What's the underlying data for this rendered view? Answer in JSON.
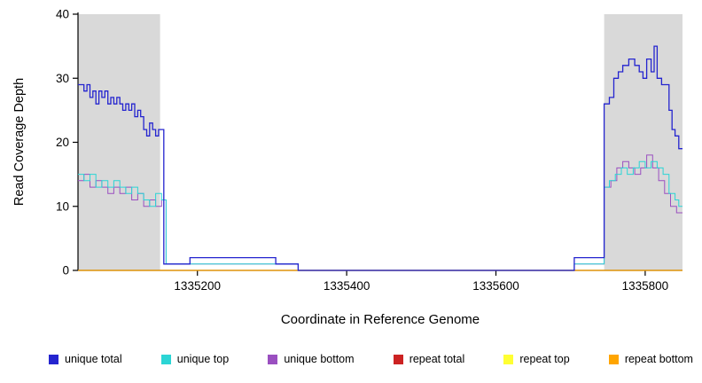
{
  "chart_data": {
    "type": "line",
    "style": "step-after-coverage-plot",
    "title": "",
    "xlabel": "Coordinate in Reference Genome",
    "ylabel": "Read Coverage Depth",
    "xlim": [
      1335040,
      1335850
    ],
    "ylim": [
      0,
      40
    ],
    "x_ticks": [
      1335200,
      1335400,
      1335600,
      1335800
    ],
    "y_ticks": [
      0,
      10,
      20,
      30,
      40
    ],
    "grid": false,
    "shade_color": "#d9d9d9",
    "shaded_regions": [
      [
        1335040,
        1335150
      ],
      [
        1335745,
        1335850
      ]
    ],
    "series": [
      {
        "id": "repeat-total",
        "name": "repeat total",
        "color": "#cc2222",
        "width": 1,
        "points": [
          [
            1335040,
            0
          ]
        ]
      },
      {
        "id": "repeat-top",
        "name": "repeat top",
        "color": "#ffff33",
        "width": 1,
        "points": [
          [
            1335040,
            0
          ]
        ]
      },
      {
        "id": "repeat-bottom",
        "name": "repeat bottom",
        "color": "#ffa500",
        "width": 1.2,
        "points": [
          [
            1335040,
            0
          ]
        ]
      },
      {
        "id": "unique-bottom",
        "name": "unique bottom",
        "color": "#9a4fc0",
        "width": 1,
        "points": [
          [
            1335040,
            14
          ],
          [
            1335048,
            15
          ],
          [
            1335056,
            13
          ],
          [
            1335064,
            14
          ],
          [
            1335072,
            13
          ],
          [
            1335080,
            12
          ],
          [
            1335088,
            13
          ],
          [
            1335096,
            12
          ],
          [
            1335104,
            13
          ],
          [
            1335112,
            11
          ],
          [
            1335120,
            12
          ],
          [
            1335128,
            10
          ],
          [
            1335136,
            11
          ],
          [
            1335144,
            10
          ],
          [
            1335152,
            11
          ],
          [
            1335158,
            1
          ],
          [
            1335335,
            0
          ],
          [
            1335705,
            1
          ],
          [
            1335745,
            13
          ],
          [
            1335754,
            14
          ],
          [
            1335762,
            16
          ],
          [
            1335770,
            17
          ],
          [
            1335778,
            16
          ],
          [
            1335786,
            15
          ],
          [
            1335794,
            16
          ],
          [
            1335802,
            18
          ],
          [
            1335810,
            16
          ],
          [
            1335818,
            14
          ],
          [
            1335826,
            12
          ],
          [
            1335834,
            10
          ],
          [
            1335842,
            9
          ]
        ]
      },
      {
        "id": "unique-top",
        "name": "unique top",
        "color": "#2bd5d5",
        "width": 1,
        "points": [
          [
            1335040,
            15
          ],
          [
            1335048,
            14
          ],
          [
            1335056,
            15
          ],
          [
            1335064,
            13
          ],
          [
            1335072,
            14
          ],
          [
            1335080,
            13
          ],
          [
            1335088,
            14
          ],
          [
            1335096,
            13
          ],
          [
            1335104,
            12
          ],
          [
            1335112,
            13
          ],
          [
            1335120,
            12
          ],
          [
            1335128,
            11
          ],
          [
            1335136,
            10
          ],
          [
            1335144,
            12
          ],
          [
            1335152,
            11
          ],
          [
            1335158,
            1
          ],
          [
            1335335,
            0
          ],
          [
            1335705,
            1
          ],
          [
            1335745,
            13
          ],
          [
            1335752,
            14
          ],
          [
            1335760,
            15
          ],
          [
            1335768,
            16
          ],
          [
            1335776,
            15
          ],
          [
            1335784,
            16
          ],
          [
            1335792,
            17
          ],
          [
            1335800,
            16
          ],
          [
            1335808,
            17
          ],
          [
            1335816,
            16
          ],
          [
            1335824,
            15
          ],
          [
            1335832,
            12
          ],
          [
            1335840,
            11
          ],
          [
            1335845,
            10
          ]
        ]
      },
      {
        "id": "unique-total",
        "name": "unique total",
        "color": "#2424cf",
        "width": 1.3,
        "points": [
          [
            1335040,
            29
          ],
          [
            1335048,
            28
          ],
          [
            1335052,
            29
          ],
          [
            1335056,
            27
          ],
          [
            1335060,
            28
          ],
          [
            1335064,
            26
          ],
          [
            1335068,
            28
          ],
          [
            1335072,
            27
          ],
          [
            1335076,
            28
          ],
          [
            1335080,
            26
          ],
          [
            1335084,
            27
          ],
          [
            1335088,
            26
          ],
          [
            1335092,
            27
          ],
          [
            1335096,
            26
          ],
          [
            1335100,
            25
          ],
          [
            1335104,
            26
          ],
          [
            1335108,
            25
          ],
          [
            1335112,
            26
          ],
          [
            1335116,
            24
          ],
          [
            1335120,
            25
          ],
          [
            1335124,
            24
          ],
          [
            1335128,
            22
          ],
          [
            1335132,
            21
          ],
          [
            1335136,
            23
          ],
          [
            1335140,
            22
          ],
          [
            1335144,
            21
          ],
          [
            1335148,
            22
          ],
          [
            1335155,
            1
          ],
          [
            1335190,
            2
          ],
          [
            1335305,
            1
          ],
          [
            1335335,
            0
          ],
          [
            1335705,
            2
          ],
          [
            1335745,
            26
          ],
          [
            1335752,
            27
          ],
          [
            1335758,
            30
          ],
          [
            1335764,
            31
          ],
          [
            1335770,
            32
          ],
          [
            1335778,
            33
          ],
          [
            1335786,
            32
          ],
          [
            1335792,
            31
          ],
          [
            1335797,
            30
          ],
          [
            1335802,
            33
          ],
          [
            1335808,
            31
          ],
          [
            1335812,
            35
          ],
          [
            1335816,
            30
          ],
          [
            1335822,
            29
          ],
          [
            1335832,
            25
          ],
          [
            1335836,
            22
          ],
          [
            1335840,
            21
          ],
          [
            1335845,
            19
          ]
        ]
      }
    ]
  },
  "legend": {
    "items": [
      {
        "id": "unique-total",
        "label": "unique total",
        "color": "#2424cf"
      },
      {
        "id": "unique-top",
        "label": "unique top",
        "color": "#2bd5d5"
      },
      {
        "id": "unique-bottom",
        "label": "unique bottom",
        "color": "#9a4fc0"
      },
      {
        "id": "repeat-total",
        "label": "repeat total",
        "color": "#cc2222"
      },
      {
        "id": "repeat-top",
        "label": "repeat top",
        "color": "#ffff33"
      },
      {
        "id": "repeat-bottom",
        "label": "repeat bottom",
        "color": "#ffa500"
      }
    ]
  }
}
